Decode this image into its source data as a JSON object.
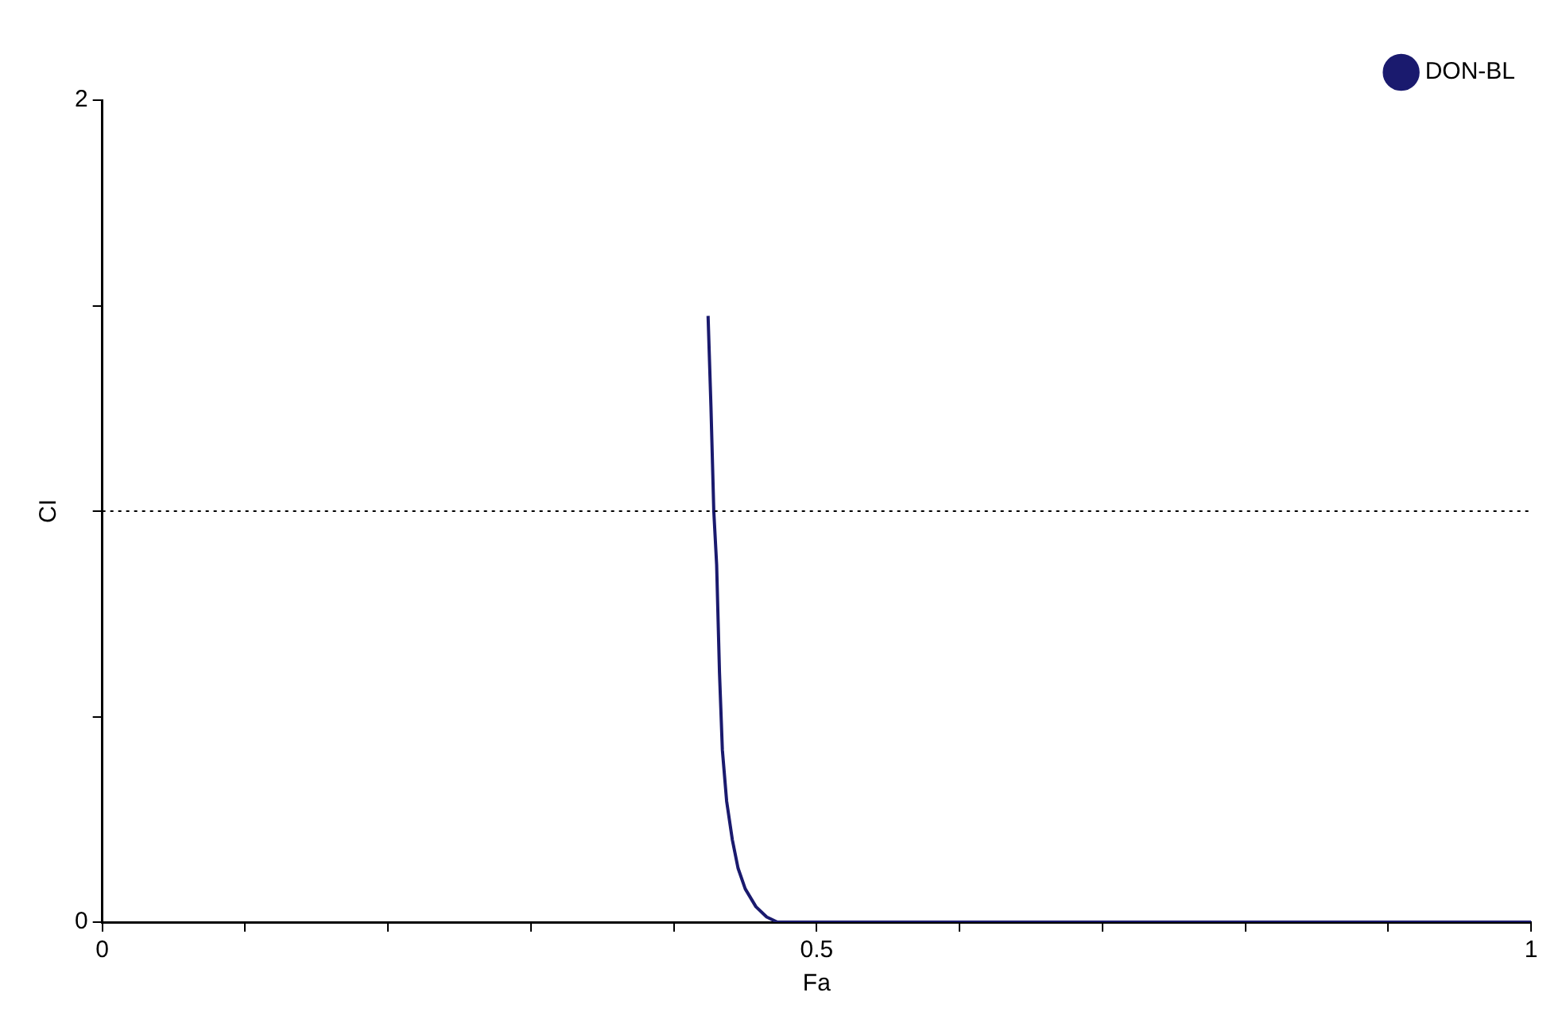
{
  "chart_data": {
    "type": "line",
    "xlabel": "Fa",
    "ylabel": "CI",
    "series": [
      {
        "name": "DON-BL",
        "color": "#1a1a6e",
        "x": [
          0.424,
          0.426,
          0.428,
          0.43,
          0.432,
          0.434,
          0.437,
          0.441,
          0.445,
          0.45,
          0.4575,
          0.465,
          0.4725,
          0.6,
          0.8,
          1
        ],
        "values": [
          1.475,
          1.256,
          1.0,
          0.869,
          0.606,
          0.419,
          0.294,
          0.2,
          0.131,
          0.081,
          0.0375,
          0.0125,
          0,
          0,
          0,
          0
        ]
      }
    ],
    "xlim": [
      0,
      1
    ],
    "ylim": [
      0,
      2
    ],
    "xticks": [
      0,
      {
        "value": 0.1,
        "label": null
      },
      {
        "value": 0.2,
        "label": null
      },
      {
        "value": 0.3,
        "label": null
      },
      {
        "value": 0.4,
        "label": null
      },
      0.5,
      {
        "value": 0.6,
        "label": null
      },
      {
        "value": 0.7,
        "label": null
      },
      {
        "value": 0.8,
        "label": null
      },
      {
        "value": 0.9,
        "label": null
      },
      1
    ],
    "yticks": [
      0,
      {
        "value": 0.5,
        "label": null
      },
      {
        "value": 1,
        "label": null
      },
      {
        "value": 1.5,
        "label": null
      },
      2
    ],
    "ref_lines": [
      {
        "axis": "y",
        "value": 1,
        "color": "#000000",
        "line_style": "dotted"
      }
    ],
    "grid": false,
    "legend": "top right",
    "marker": "none",
    "line_style": "solid"
  }
}
